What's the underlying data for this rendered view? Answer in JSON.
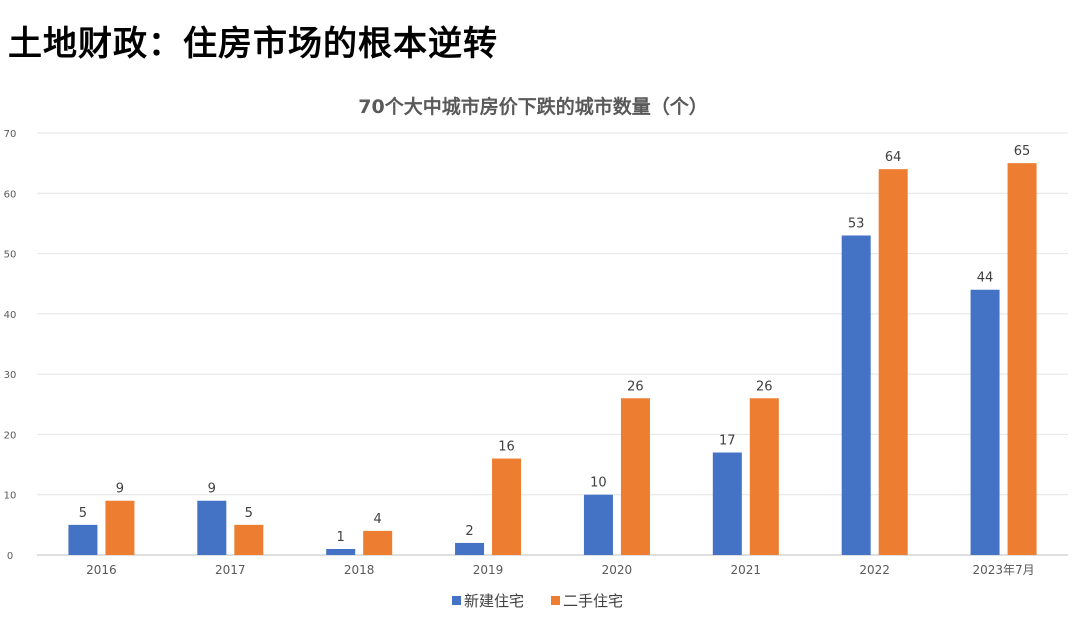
{
  "page": {
    "title": "土地财政：住房市场的根本逆转"
  },
  "chart_data": {
    "type": "bar",
    "title": "70个大中城市房价下跌的城市数量（个）",
    "xlabel": "",
    "ylabel": "",
    "categories": [
      "2016",
      "2017",
      "2018",
      "2019",
      "2020",
      "2021",
      "2022",
      "2023年7月"
    ],
    "series": [
      {
        "name": "新建住宅",
        "color": "#4472C4",
        "values": [
          5,
          9,
          1,
          2,
          10,
          17,
          53,
          44
        ]
      },
      {
        "name": "二手住宅",
        "color": "#ED7D31",
        "values": [
          9,
          5,
          4,
          16,
          26,
          26,
          64,
          65
        ]
      }
    ],
    "ylim": [
      0,
      70
    ],
    "yticks": [
      0,
      10,
      20,
      30,
      40,
      50,
      60,
      70
    ],
    "grid": true,
    "legend": "bottom"
  }
}
